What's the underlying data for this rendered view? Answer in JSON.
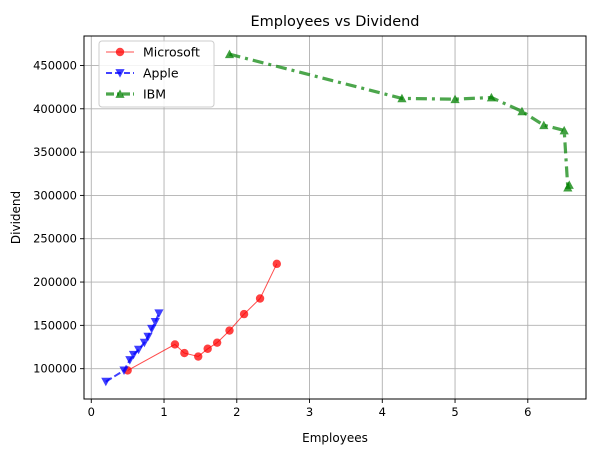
{
  "chart_data": {
    "type": "line",
    "title": "Employees vs Dividend",
    "xlabel": "Employees",
    "ylabel": "Dividend",
    "xlim": [
      -0.1,
      6.8
    ],
    "ylim": [
      65000,
      484000
    ],
    "xticks": [
      0,
      1,
      2,
      3,
      4,
      5,
      6
    ],
    "yticks": [
      100000,
      150000,
      200000,
      250000,
      300000,
      350000,
      400000,
      450000
    ],
    "grid": true,
    "legend_position": "top-left",
    "series": [
      {
        "name": "Microsoft",
        "color": "#ff0000",
        "marker": "circle",
        "line_style": "solid",
        "x": [
          0.5,
          1.15,
          1.28,
          1.47,
          1.6,
          1.73,
          1.9,
          2.1,
          2.32,
          2.55
        ],
        "y": [
          98000,
          128000,
          118000,
          114000,
          123000,
          130000,
          144000,
          163000,
          181000,
          221000
        ]
      },
      {
        "name": "Apple",
        "color": "#0000ff",
        "marker": "triangle-down",
        "line_style": "dashed",
        "x": [
          0.2,
          0.45,
          0.53,
          0.58,
          0.65,
          0.73,
          0.78,
          0.83,
          0.88,
          0.93
        ],
        "y": [
          85000,
          98000,
          110000,
          116000,
          122000,
          130000,
          137000,
          146000,
          154000,
          164000
        ]
      },
      {
        "name": "IBM",
        "color": "#008000",
        "marker": "triangle-up",
        "line_style": "dash-dot",
        "x": [
          1.9,
          4.27,
          5.0,
          5.5,
          5.92,
          6.22,
          6.5,
          6.55,
          6.57
        ],
        "y": [
          463000,
          412000,
          411000,
          413000,
          397000,
          381000,
          375000,
          309000,
          312000
        ]
      }
    ]
  }
}
